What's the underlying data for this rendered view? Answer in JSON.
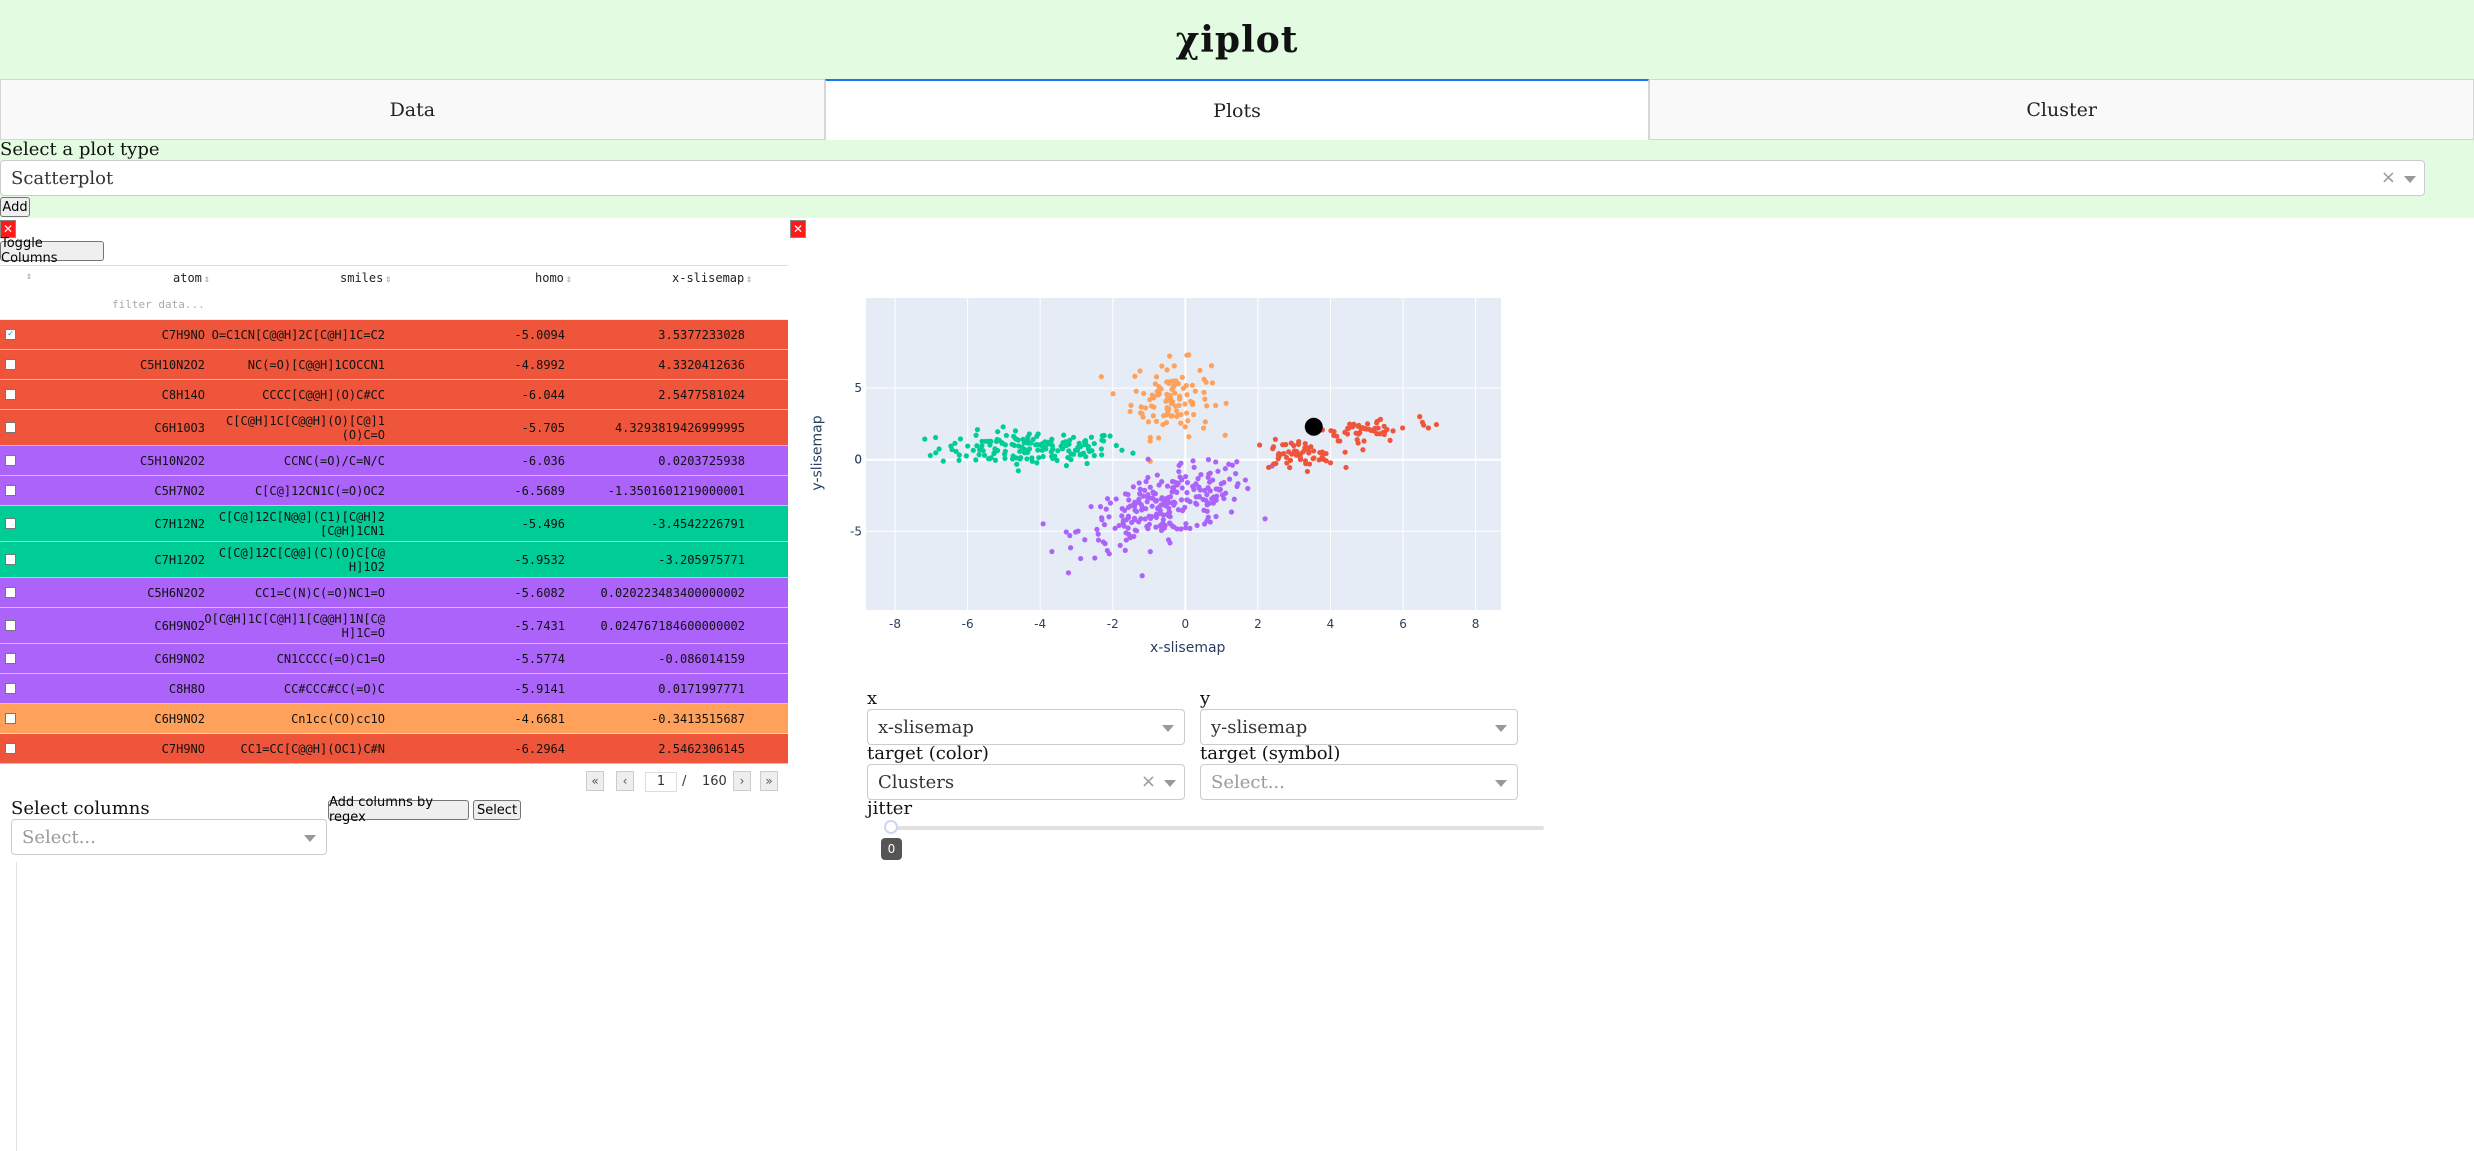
{
  "app_title": "χiplot",
  "tabs": [
    {
      "label": "Data"
    },
    {
      "label": "Plots"
    },
    {
      "label": "Cluster"
    }
  ],
  "active_tab": "Plots",
  "plot_type": {
    "label": "Select a plot type",
    "value": "Scatterplot",
    "add_button": "Add"
  },
  "table": {
    "toggle_columns": "Toggle Columns",
    "columns": [
      "atom",
      "smiles",
      "homo",
      "x-slisemap"
    ],
    "filter_placeholder": "filter data...",
    "rows": [
      {
        "atom": "C7H9NO",
        "smiles": "O=C1CN[C@@H]2C[C@H]1C=C2",
        "homo": "-5.0094",
        "x": "3.5377233028",
        "cluster": "red",
        "checked": true
      },
      {
        "atom": "C5H10N2O2",
        "smiles": "NC(=O)[C@@H]1COCCN1",
        "homo": "-4.8992",
        "x": "4.3320412636",
        "cluster": "red",
        "checked": false
      },
      {
        "atom": "C8H14O",
        "smiles": "CCCC[C@@H](O)C#CC",
        "homo": "-6.044",
        "x": "2.5477581024",
        "cluster": "red",
        "checked": false
      },
      {
        "atom": "C6H10O3",
        "smiles": "C[C@H]1C[C@@H](O)[C@]1\n(O)C=O",
        "homo": "-5.705",
        "x": "4.3293819426999995",
        "cluster": "red",
        "checked": false
      },
      {
        "atom": "C5H10N2O2",
        "smiles": "CCNC(=O)/C=N/C",
        "homo": "-6.036",
        "x": "0.0203725938",
        "cluster": "purple",
        "checked": false
      },
      {
        "atom": "C5H7NO2",
        "smiles": "C[C@]12CN1C(=O)OC2",
        "homo": "-6.5689",
        "x": "-1.3501601219000001",
        "cluster": "purple",
        "checked": false
      },
      {
        "atom": "C7H12N2",
        "smiles": "C[C@]12C[N@@](C1)[C@H]2\n[C@H]1CN1",
        "homo": "-5.496",
        "x": "-3.4542226791",
        "cluster": "green",
        "checked": false
      },
      {
        "atom": "C7H12O2",
        "smiles": "C[C@]12C[C@@](C)(O)C[C@\nH]1O2",
        "homo": "-5.9532",
        "x": "-3.205975771",
        "cluster": "green",
        "checked": false
      },
      {
        "atom": "C5H6N2O2",
        "smiles": "CC1=C(N)C(=O)NC1=O",
        "homo": "-5.6082",
        "x": "0.020223483400000002",
        "cluster": "purple",
        "checked": false
      },
      {
        "atom": "C6H9NO2",
        "smiles": "O[C@H]1C[C@H]1[C@@H]1N[C@\nH]1C=O",
        "homo": "-5.7431",
        "x": "0.024767184600000002",
        "cluster": "purple",
        "checked": false
      },
      {
        "atom": "C6H9NO2",
        "smiles": "CN1CCCC(=O)C1=O",
        "homo": "-5.5774",
        "x": "-0.086014159",
        "cluster": "purple",
        "checked": false
      },
      {
        "atom": "C8H8O",
        "smiles": "CC#CCC#CC(=O)C",
        "homo": "-5.9141",
        "x": "0.0171997771",
        "cluster": "purple",
        "checked": false
      },
      {
        "atom": "C6H9NO2",
        "smiles": "Cn1cc(CO)cc1O",
        "homo": "-4.6681",
        "x": "-0.3413515687",
        "cluster": "orange",
        "checked": false
      },
      {
        "atom": "C7H9NO",
        "smiles": "CC1=CC[C@@H](OC1)C#N",
        "homo": "-6.2964",
        "x": "2.5462306145",
        "cluster": "red",
        "checked": false
      }
    ],
    "pager": {
      "current": "1",
      "separator": "/",
      "total": "160"
    }
  },
  "select_columns": {
    "label": "Select columns",
    "placeholder": "Select...",
    "add_regex_button": "Add columns by regex",
    "select_button": "Select"
  },
  "controls": {
    "x_label": "x",
    "x_value": "x-slisemap",
    "y_label": "y",
    "y_value": "y-slisemap",
    "color_label": "target (color)",
    "color_value": "Clusters",
    "symbol_label": "target (symbol)",
    "symbol_placeholder": "Select...",
    "jitter_label": "jitter",
    "jitter_value": "0"
  },
  "colors": {
    "red": "#ef553b",
    "purple": "#ab63fa",
    "green": "#00cc96",
    "orange": "#ffa15a",
    "plot_bg": "#e5ecf6",
    "header_bg": "#e3fbe1"
  },
  "chart_data": {
    "type": "scatter",
    "xlabel": "x-slisemap",
    "ylabel": "y-slisemap",
    "xlim": [
      -8.8,
      8.7
    ],
    "ylim": [
      -10.5,
      11.3
    ],
    "xticks": [
      "-8",
      "-6",
      "-4",
      "-2",
      "0",
      "2",
      "4",
      "6",
      "8"
    ],
    "yticks": [
      "-5",
      "0",
      "5"
    ],
    "grid": true,
    "highlighted_point": {
      "x": 3.54,
      "y": 2.3
    },
    "clusters": [
      {
        "color": "green",
        "center": [
          -4.2,
          0.8
        ],
        "spread": [
          1.3,
          0.6
        ],
        "count": 160
      },
      {
        "color": "orange",
        "center": [
          -0.4,
          4.3
        ],
        "spread": [
          0.55,
          1.3
        ],
        "count": 110
      },
      {
        "color": "purple",
        "center": [
          -0.5,
          -3.2
        ],
        "spread": [
          1.2,
          1.1
        ],
        "count": 260
      },
      {
        "color": "red",
        "center": [
          3.0,
          0.3
        ],
        "spread": [
          0.6,
          0.5
        ],
        "count": 60
      },
      {
        "color": "red",
        "center": [
          5.0,
          2.0
        ],
        "spread": [
          0.9,
          0.5
        ],
        "count": 55
      }
    ]
  }
}
